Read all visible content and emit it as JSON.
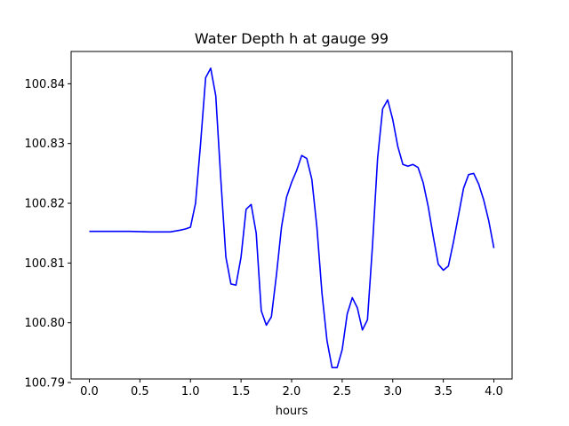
{
  "chart_data": {
    "type": "line",
    "title": "Water Depth h at gauge 99",
    "xlabel": "hours",
    "ylabel": "",
    "xlim": [
      -0.18,
      4.18
    ],
    "ylim": [
      100.7906,
      100.8454
    ],
    "grid": false,
    "legend": "none",
    "x_ticks": [
      0.0,
      0.5,
      1.0,
      1.5,
      2.0,
      2.5,
      3.0,
      3.5,
      4.0
    ],
    "x_tick_labels": [
      "0.0",
      "0.5",
      "1.0",
      "1.5",
      "2.0",
      "2.5",
      "3.0",
      "3.5",
      "4.0"
    ],
    "y_ticks": [
      100.79,
      100.8,
      100.81,
      100.82,
      100.83,
      100.84
    ],
    "y_tick_labels": [
      "100.79",
      "100.80",
      "100.81",
      "100.82",
      "100.83",
      "100.84"
    ],
    "series": [
      {
        "color": "#0000ff",
        "x": [
          0.0,
          0.2,
          0.4,
          0.6,
          0.8,
          0.9,
          0.95,
          1.0,
          1.05,
          1.1,
          1.15,
          1.2,
          1.25,
          1.3,
          1.35,
          1.4,
          1.45,
          1.5,
          1.55,
          1.6,
          1.65,
          1.7,
          1.75,
          1.8,
          1.85,
          1.9,
          1.95,
          2.0,
          2.05,
          2.1,
          2.15,
          2.2,
          2.25,
          2.3,
          2.35,
          2.4,
          2.45,
          2.5,
          2.55,
          2.6,
          2.65,
          2.7,
          2.75,
          2.8,
          2.85,
          2.9,
          2.95,
          3.0,
          3.05,
          3.1,
          3.15,
          3.2,
          3.25,
          3.3,
          3.35,
          3.4,
          3.45,
          3.5,
          3.55,
          3.6,
          3.65,
          3.7,
          3.75,
          3.8,
          3.85,
          3.9,
          3.95,
          4.0
        ],
        "y": [
          100.8153,
          100.8153,
          100.8153,
          100.8152,
          100.8152,
          100.8155,
          100.8157,
          100.816,
          100.82,
          100.83,
          100.841,
          100.8426,
          100.838,
          100.824,
          100.811,
          100.8065,
          100.8063,
          100.811,
          100.819,
          100.8198,
          100.815,
          100.802,
          100.7996,
          100.801,
          100.808,
          100.816,
          100.821,
          100.8235,
          100.8255,
          100.828,
          100.8275,
          100.824,
          100.816,
          100.805,
          100.797,
          100.7925,
          100.7925,
          100.7955,
          100.8015,
          100.8042,
          100.8025,
          100.7988,
          100.8005,
          100.813,
          100.8275,
          100.8358,
          100.8373,
          100.834,
          100.8295,
          100.8265,
          100.8262,
          100.8265,
          100.826,
          100.8235,
          100.8195,
          100.8145,
          100.8098,
          100.8088,
          100.8095,
          100.8135,
          100.818,
          100.8225,
          100.8248,
          100.825,
          100.8232,
          100.8205,
          100.817,
          100.8125
        ]
      }
    ]
  }
}
